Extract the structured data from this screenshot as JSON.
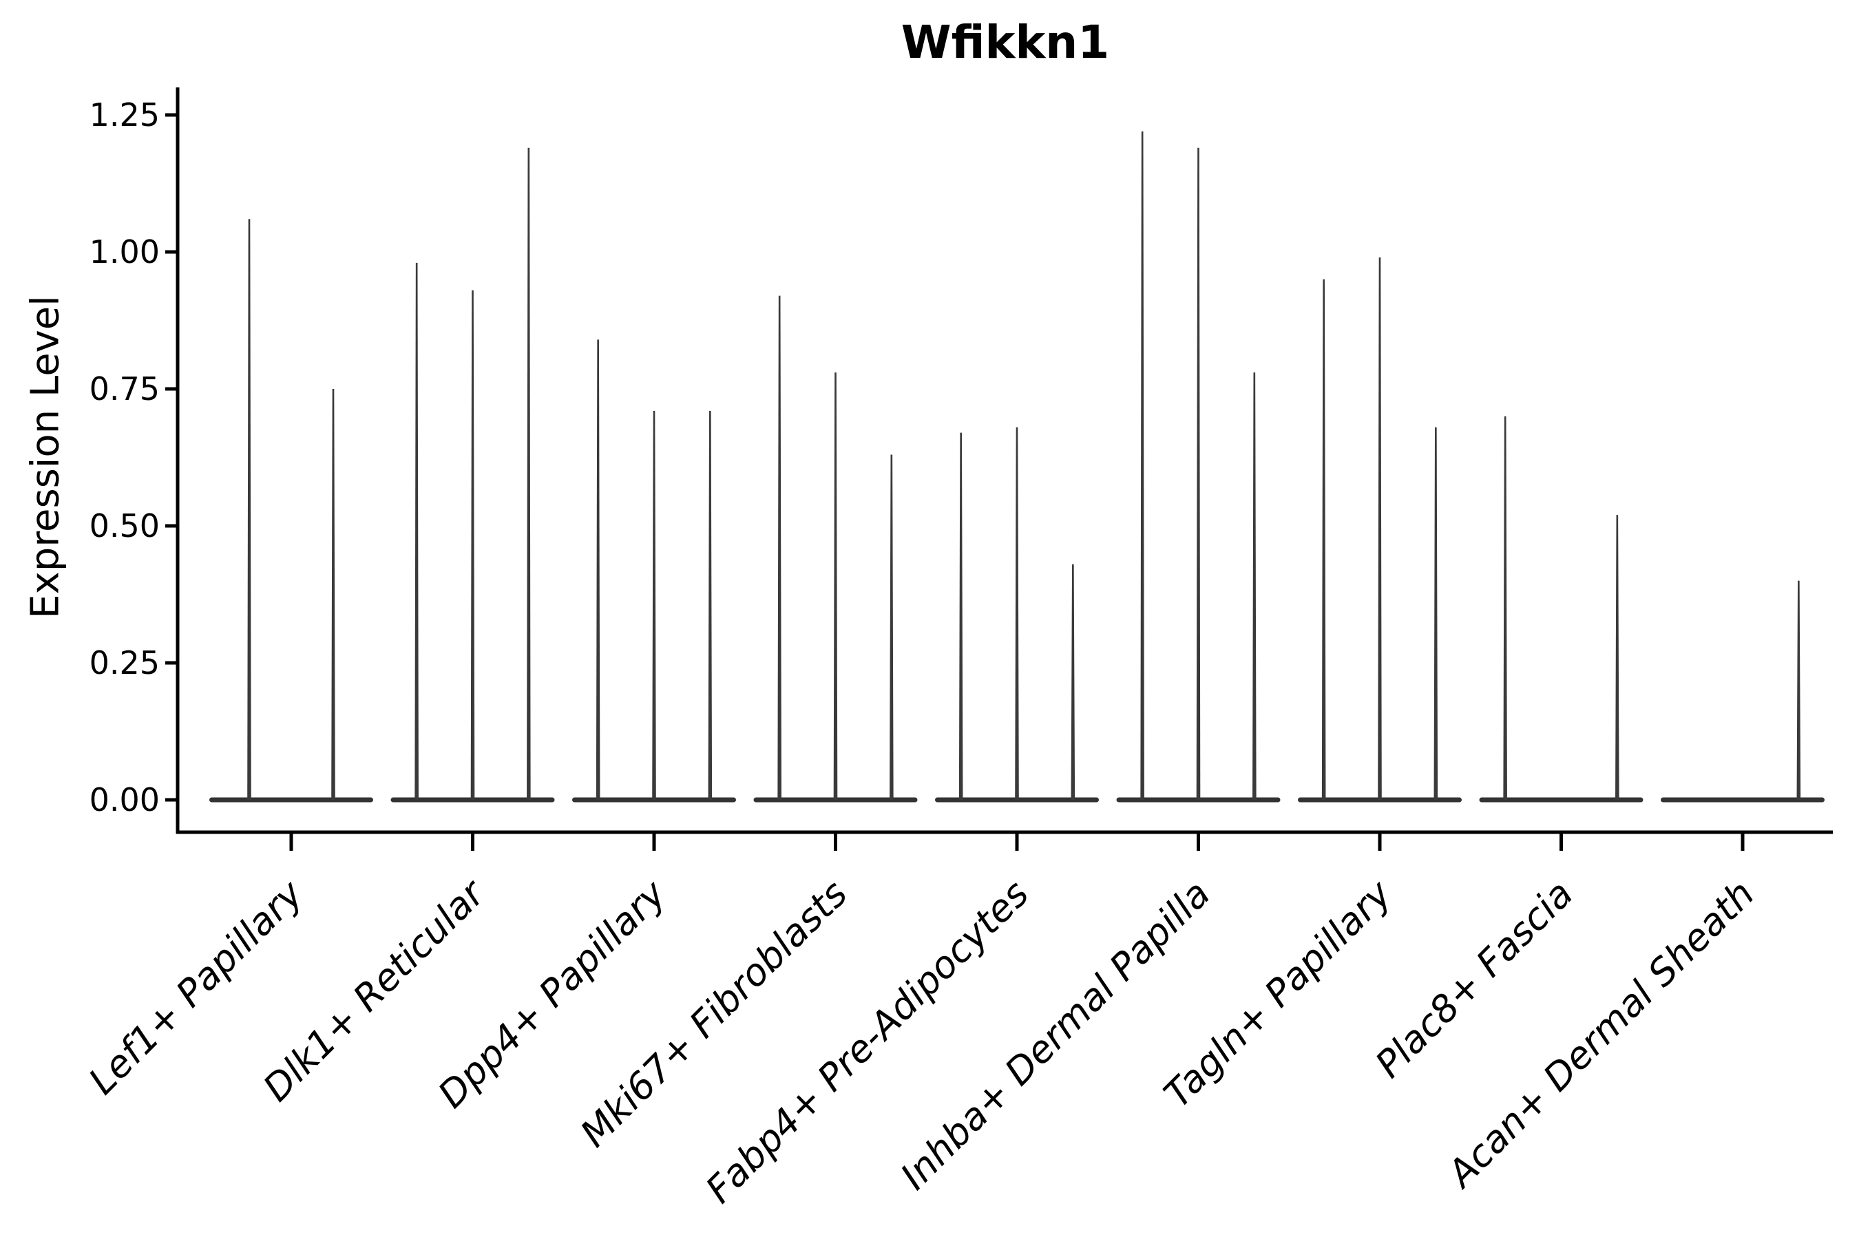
{
  "chart_data": {
    "type": "violin",
    "title": "Wfikkn1",
    "ylabel": "Expression Level",
    "xlabel": "",
    "categories": [
      "Lef1+ Papillary",
      "Dlk1+ Reticular",
      "Dpp4+ Papillary",
      "Mki67+ Fibroblasts",
      "Fabp4+ Pre-Adipocytes",
      "Inhba+ Dermal Papilla",
      "Tagln+ Papillary",
      "Plac8+ Fascia",
      "Acan+ Dermal Sheath"
    ],
    "violin_max_expression": [
      [
        1.06,
        0.75
      ],
      [
        0.98,
        0.93,
        1.19
      ],
      [
        0.84,
        0.71,
        0.71
      ],
      [
        0.92,
        0.78,
        0.63
      ],
      [
        0.67,
        0.68,
        0.43
      ],
      [
        1.22,
        1.19,
        0.78
      ],
      [
        0.95,
        0.99,
        0.68
      ],
      [
        0.7,
        0.0,
        0.52
      ],
      [
        0.0,
        0.0,
        0.4
      ]
    ],
    "ytick_labels": [
      "0.00",
      "0.25",
      "0.50",
      "0.75",
      "1.00",
      "1.25"
    ],
    "ylim": [
      -0.06,
      1.3
    ],
    "grid": false,
    "legend": "none",
    "xtick_label_style": "italic, rotated 45",
    "violin_fill_color": "#333333",
    "spike_color": "#3a3a3a",
    "axis_color": "#000000"
  }
}
